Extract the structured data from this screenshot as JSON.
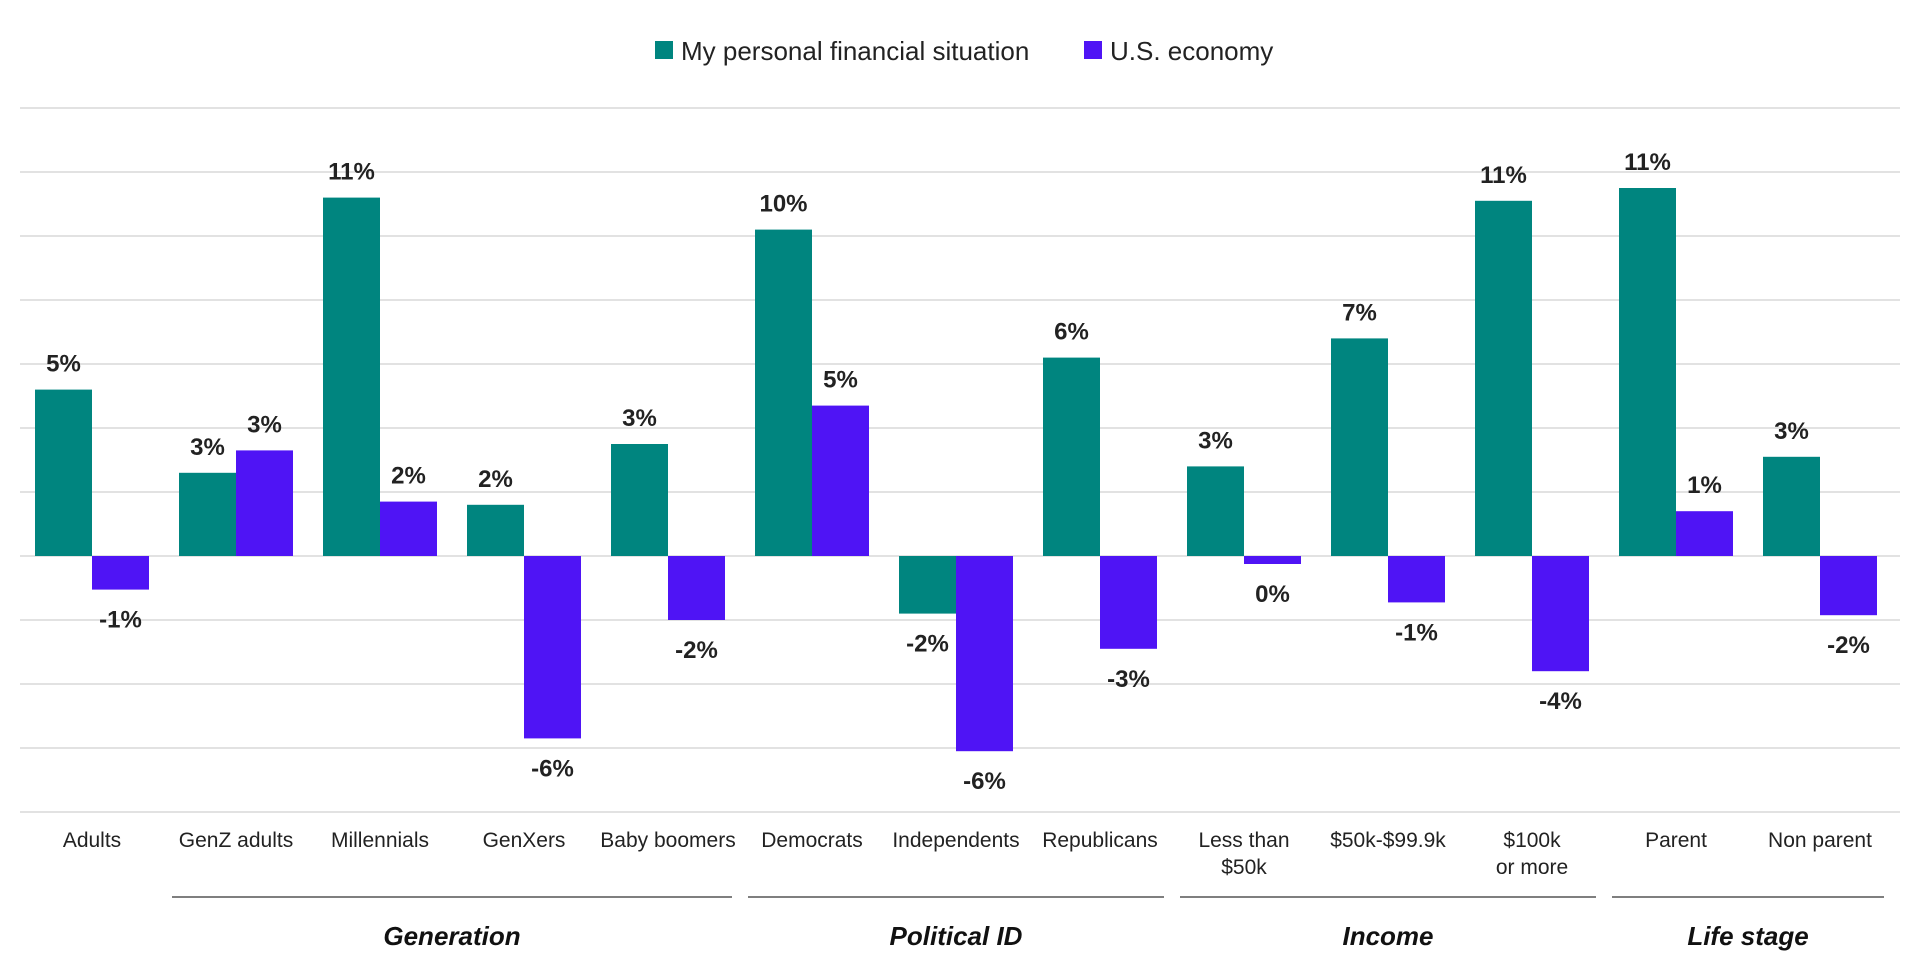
{
  "chart_data": {
    "type": "bar",
    "categories": [
      [
        "Adults"
      ],
      [
        "GenZ adults"
      ],
      [
        "Millennials"
      ],
      [
        "GenXers"
      ],
      [
        "Baby boomers"
      ],
      [
        "Democrats"
      ],
      [
        "Independents"
      ],
      [
        "Republicans"
      ],
      [
        "Less than",
        "$50k"
      ],
      [
        "$50k-$99.9k"
      ],
      [
        "$100k",
        "or more"
      ],
      [
        "Parent"
      ],
      [
        "Non parent"
      ]
    ],
    "series": [
      {
        "name": "My personal financial situation",
        "color": "#00857f",
        "values": [
          5.2,
          2.6,
          11.2,
          1.6,
          3.5,
          10.2,
          -1.8,
          6.2,
          2.8,
          6.8,
          11.1,
          11.5,
          3.1
        ],
        "labels": [
          "5%",
          "3%",
          "11%",
          "2%",
          "3%",
          "10%",
          "-2%",
          "6%",
          "3%",
          "7%",
          "11%",
          "11%",
          "3%"
        ]
      },
      {
        "name": "U.S. economy",
        "color": "#4f14f5",
        "values": [
          -1.05,
          3.3,
          1.7,
          -5.7,
          -2.0,
          4.7,
          -6.1,
          -2.9,
          -0.25,
          -1.45,
          -3.6,
          1.4,
          -1.85
        ],
        "labels": [
          "-1%",
          "3%",
          "2%",
          "-6%",
          "-2%",
          "5%",
          "-6%",
          "-3%",
          "0%",
          "-1%",
          "-4%",
          "1%",
          "-2%"
        ]
      }
    ],
    "groups": [
      {
        "label": "Generation",
        "start": 1,
        "end": 4
      },
      {
        "label": "Political ID",
        "start": 5,
        "end": 7
      },
      {
        "label": "Income",
        "start": 8,
        "end": 10
      },
      {
        "label": "Life stage",
        "start": 11,
        "end": 12
      }
    ],
    "ylim": [
      -8,
      14
    ],
    "grid": true,
    "legend": "top-center"
  }
}
